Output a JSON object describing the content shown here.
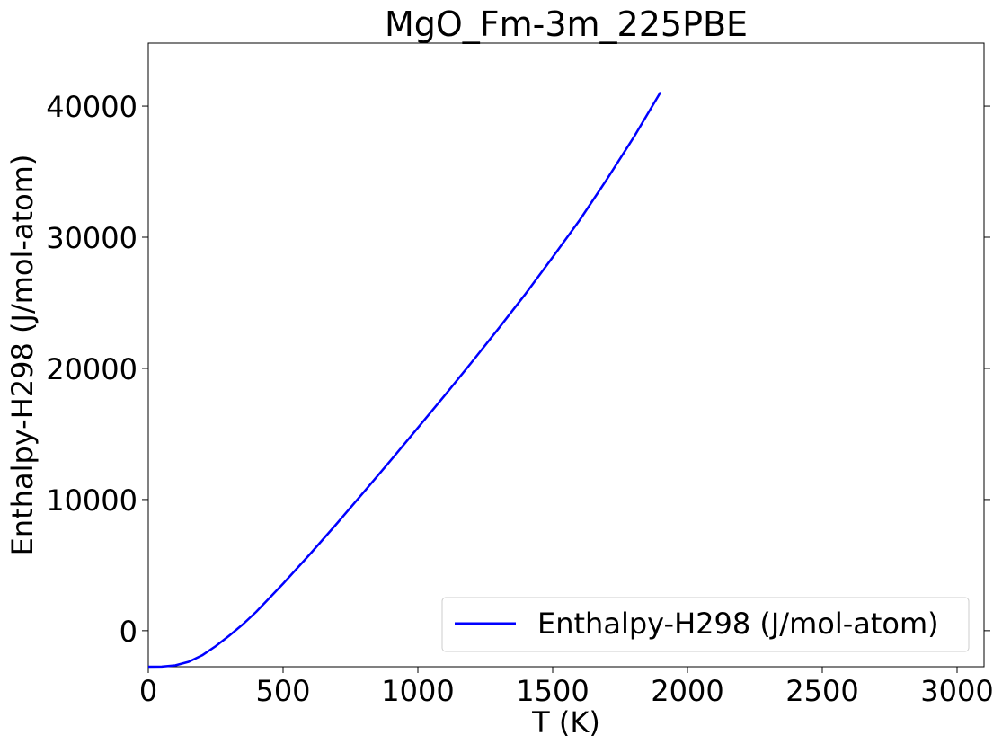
{
  "chart_data": {
    "type": "line",
    "title": "MgO_Fm-3m_225PBE",
    "xlabel": "T (K)",
    "ylabel": "Enthalpy-H298 (J/mol-atom)",
    "xlim": [
      0,
      3100
    ],
    "ylim": [
      -2750,
      44800
    ],
    "xticks": [
      0,
      500,
      1000,
      1500,
      2000,
      2500,
      3000
    ],
    "yticks": [
      0,
      10000,
      20000,
      30000,
      40000
    ],
    "grid": false,
    "legend_position": "bottom-right",
    "series": [
      {
        "name": "Enthalpy-H298 (J/mol-atom)",
        "color": "#0000ff",
        "x": [
          0,
          50,
          100,
          150,
          200,
          250,
          298,
          350,
          400,
          500,
          600,
          700,
          800,
          900,
          1000,
          1100,
          1200,
          1300,
          1400,
          1500,
          1600,
          1700,
          1800,
          1900
        ],
        "y": [
          -2750,
          -2740,
          -2650,
          -2370,
          -1880,
          -1180,
          -420,
          470,
          1430,
          3580,
          5840,
          8180,
          10580,
          13000,
          15470,
          17950,
          20480,
          23060,
          25700,
          28470,
          31300,
          34380,
          37600,
          41060
        ]
      }
    ]
  }
}
